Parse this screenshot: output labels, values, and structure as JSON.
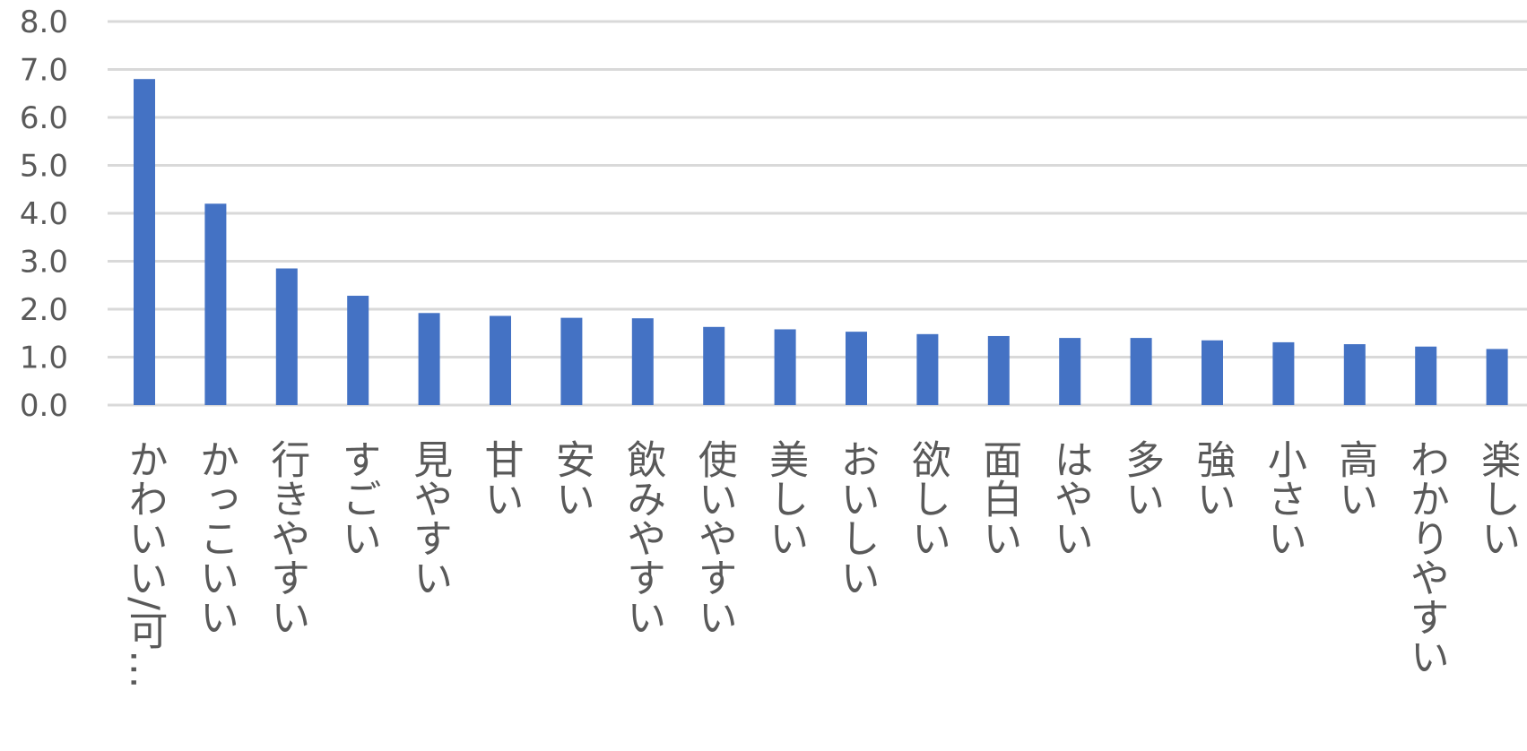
{
  "chart_data": {
    "type": "bar",
    "title": "",
    "xlabel": "",
    "ylabel": "",
    "ylim": [
      0,
      8
    ],
    "yticks": [
      "0.0",
      "1.0",
      "2.0",
      "3.0",
      "4.0",
      "5.0",
      "6.0",
      "7.0",
      "8.0"
    ],
    "grid": true,
    "bar_color": "#4472C4",
    "categories": [
      "かわいい/可…",
      "かっこいい",
      "行きやすい",
      "すごい",
      "見やすい",
      "甘い",
      "安い",
      "飲みやすい",
      "使いやすい",
      "美しい",
      "おいしい",
      "欲しい",
      "面白い",
      "はやい",
      "多い",
      "強い",
      "小さい",
      "高い",
      "わかりやすい",
      "楽しい"
    ],
    "values": [
      6.8,
      4.2,
      2.85,
      2.28,
      1.92,
      1.86,
      1.82,
      1.81,
      1.63,
      1.58,
      1.53,
      1.48,
      1.44,
      1.4,
      1.4,
      1.35,
      1.31,
      1.27,
      1.22,
      1.17
    ]
  }
}
